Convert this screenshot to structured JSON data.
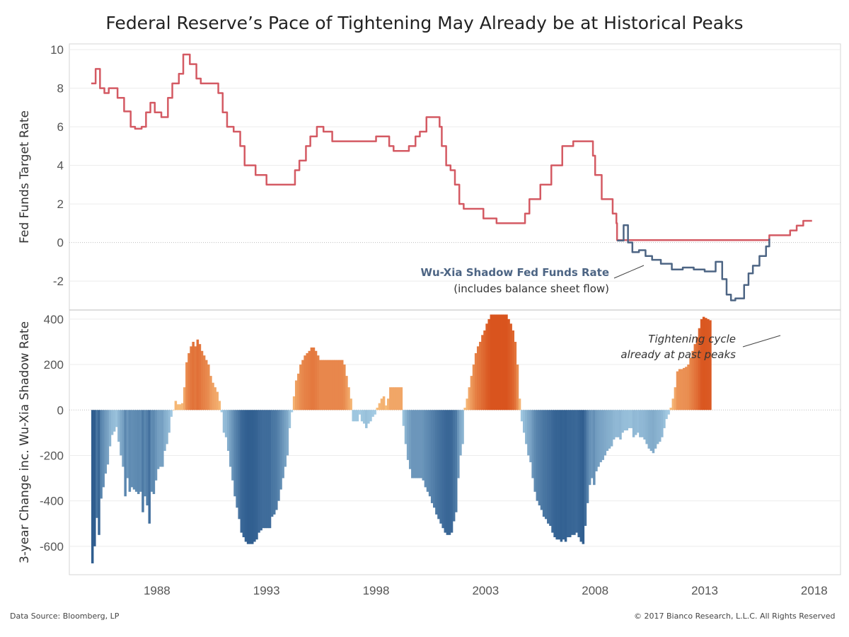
{
  "title": "Federal Reserve’s Pace of Tightening May Already be at Historical Peaks",
  "footer": {
    "source": "Data Source: Bloomberg, LP",
    "copyright": "© 2017 Bianco Research, L.L.C. All Rights Reserved"
  },
  "colors": {
    "fed_funds_line": "#d45a63",
    "shadow_line": "#4d6584",
    "positive_light": "#f8c07e",
    "positive_dark": "#d9541e",
    "negative_light": "#a8cfe6",
    "negative_dark": "#2f5d8f"
  },
  "chart_data": [
    {
      "type": "line",
      "ylabel": "Fed Funds Target Rate",
      "ylim": [
        -3.5,
        10.3
      ],
      "yticks": [
        10,
        8,
        6,
        4,
        2,
        0,
        -2
      ],
      "xlim": [
        1984.0,
        2019.2
      ],
      "grid": true,
      "annotation": {
        "line1": "Wu-Xia Shadow Fed Funds Rate",
        "line2": "(includes balance sheet flow)"
      },
      "series": [
        {
          "id": "fed_funds",
          "x": [
            1985.0,
            1985.2,
            1985.4,
            1985.6,
            1985.8,
            1986.0,
            1986.2,
            1986.5,
            1986.8,
            1987.0,
            1987.3,
            1987.5,
            1987.7,
            1987.9,
            1988.2,
            1988.5,
            1988.7,
            1989.0,
            1989.2,
            1989.5,
            1989.8,
            1990.0,
            1990.5,
            1990.8,
            1991.0,
            1991.2,
            1991.5,
            1991.8,
            1992.0,
            1992.5,
            1993.0,
            1994.0,
            1994.3,
            1994.5,
            1994.8,
            1995.0,
            1995.3,
            1995.6,
            1996.0,
            1996.5,
            1997.0,
            1998.0,
            1998.6,
            1998.8,
            1999.0,
            1999.5,
            1999.8,
            2000.0,
            2000.3,
            2000.5,
            2000.9,
            2001.0,
            2001.2,
            2001.4,
            2001.6,
            2001.8,
            2002.0,
            2002.9,
            2003.5,
            2004.5,
            2004.8,
            2005.0,
            2005.5,
            2006.0,
            2006.5,
            2007.0,
            2007.6,
            2007.9,
            2008.0,
            2008.3,
            2008.8,
            2008.97,
            2009.0,
            2013.0,
            2015.95,
            2016.9,
            2017.2,
            2017.5,
            2017.9
          ],
          "y": [
            8.25,
            9.0,
            8.0,
            7.75,
            8.0,
            8.0,
            7.5,
            6.8,
            6.0,
            5.9,
            6.0,
            6.75,
            7.25,
            6.75,
            6.5,
            7.5,
            8.25,
            8.75,
            9.75,
            9.25,
            8.5,
            8.25,
            8.25,
            7.75,
            6.75,
            6.0,
            5.75,
            5.0,
            4.0,
            3.5,
            3.0,
            3.0,
            3.75,
            4.25,
            5.0,
            5.5,
            6.0,
            5.75,
            5.25,
            5.25,
            5.25,
            5.5,
            5.0,
            4.75,
            4.75,
            5.0,
            5.5,
            5.75,
            6.5,
            6.5,
            6.0,
            5.0,
            4.0,
            3.75,
            3.0,
            2.0,
            1.75,
            1.25,
            1.0,
            1.0,
            1.5,
            2.25,
            3.0,
            4.0,
            5.0,
            5.25,
            5.25,
            4.5,
            3.5,
            2.25,
            1.5,
            1.0,
            0.125,
            0.125,
            0.375,
            0.625,
            0.875,
            1.125,
            1.125
          ]
        },
        {
          "id": "shadow_rate",
          "x": [
            2009.0,
            2009.3,
            2009.5,
            2009.7,
            2010.0,
            2010.3,
            2010.6,
            2011.0,
            2011.5,
            2012.0,
            2012.5,
            2013.0,
            2013.5,
            2013.8,
            2014.0,
            2014.2,
            2014.4,
            2014.6,
            2014.8,
            2015.0,
            2015.2,
            2015.5,
            2015.8,
            2015.95
          ],
          "y": [
            0.1,
            0.9,
            0.0,
            -0.5,
            -0.4,
            -0.7,
            -0.9,
            -1.1,
            -1.4,
            -1.3,
            -1.4,
            -1.5,
            -1.0,
            -1.9,
            -2.7,
            -3.0,
            -2.9,
            -2.9,
            -2.2,
            -1.6,
            -1.2,
            -0.7,
            -0.2,
            0.2
          ]
        }
      ]
    },
    {
      "type": "bar",
      "ylabel": "3-year Change inc. Wu-Xia Shadow Rate",
      "ylim": [
        -725,
        440
      ],
      "yticks": [
        400,
        200,
        0,
        -200,
        -400,
        -600
      ],
      "xlim": [
        1984.0,
        2019.2
      ],
      "xticks": [
        "1988",
        "1993",
        "1998",
        "2003",
        "2008",
        "2013",
        "2018"
      ],
      "xtick_values": [
        1988,
        1993,
        1998,
        2003,
        2008,
        2013,
        2018
      ],
      "grid": true,
      "annotation": {
        "line1": "Tightening cycle",
        "line2": "already at past peaks"
      },
      "x_start": 1985.0,
      "x_step": 0.1,
      "values": [
        -675,
        -600,
        -475,
        -550,
        -390,
        -340,
        -280,
        -240,
        -160,
        -110,
        -95,
        -75,
        -140,
        -200,
        -250,
        -380,
        -300,
        -360,
        -340,
        -350,
        -360,
        -370,
        -360,
        -450,
        -380,
        -420,
        -500,
        -360,
        -370,
        -310,
        -260,
        -250,
        -250,
        -180,
        -150,
        -100,
        -30,
        0,
        40,
        25,
        25,
        30,
        100,
        210,
        250,
        280,
        300,
        280,
        310,
        290,
        260,
        240,
        220,
        200,
        150,
        120,
        100,
        80,
        40,
        -10,
        -100,
        -120,
        -180,
        -250,
        -310,
        -380,
        -430,
        -480,
        -540,
        -560,
        -580,
        -590,
        -590,
        -590,
        -580,
        -570,
        -540,
        -530,
        -520,
        -520,
        -520,
        -520,
        -470,
        -460,
        -440,
        -400,
        -350,
        -300,
        -250,
        -200,
        -80,
        -10,
        60,
        130,
        160,
        200,
        220,
        240,
        250,
        260,
        275,
        275,
        260,
        240,
        220,
        220,
        220,
        220,
        220,
        220,
        220,
        220,
        220,
        220,
        220,
        200,
        150,
        100,
        50,
        -50,
        -50,
        -50,
        -20,
        -50,
        -60,
        -80,
        -60,
        -50,
        -30,
        -20,
        10,
        30,
        50,
        60,
        20,
        50,
        100,
        100,
        100,
        100,
        100,
        100,
        -70,
        -150,
        -220,
        -260,
        -300,
        -300,
        -300,
        -300,
        -300,
        -310,
        -340,
        -360,
        -380,
        -410,
        -430,
        -460,
        -480,
        -500,
        -520,
        -540,
        -550,
        -550,
        -540,
        -490,
        -450,
        -300,
        -200,
        -150,
        10,
        50,
        100,
        150,
        200,
        250,
        280,
        300,
        330,
        350,
        380,
        400,
        420,
        420,
        420,
        420,
        420,
        420,
        420,
        420,
        400,
        380,
        350,
        300,
        200,
        50,
        -50,
        -100,
        -150,
        -200,
        -230,
        -300,
        -360,
        -400,
        -420,
        -440,
        -470,
        -480,
        -500,
        -510,
        -540,
        -560,
        -570,
        -570,
        -580,
        -570,
        -580,
        -560,
        -560,
        -550,
        -550,
        -540,
        -560,
        -580,
        -590,
        -510,
        -410,
        -330,
        -300,
        -330,
        -270,
        -250,
        -230,
        -220,
        -200,
        -180,
        -170,
        -160,
        -130,
        -120,
        -120,
        -130,
        -100,
        -90,
        -90,
        -80,
        -80,
        -120,
        -110,
        -100,
        -120,
        -120,
        -130,
        -150,
        -170,
        -180,
        -190,
        -170,
        -150,
        -140,
        -120,
        -80,
        -40,
        -20,
        10,
        50,
        100,
        170,
        180,
        180,
        185,
        190,
        200,
        230,
        260,
        290,
        320,
        360,
        400,
        410,
        405,
        400,
        395
      ]
    }
  ]
}
